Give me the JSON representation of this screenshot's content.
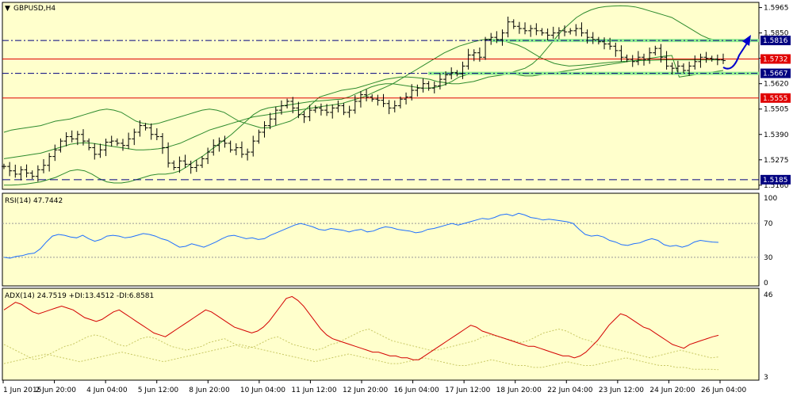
{
  "chart_data": {
    "type": "ohlc",
    "symbol_label": "GBPUSD,H4",
    "colors": {
      "background": "#ffffcc",
      "bars": "#000000",
      "bollinger": "#2e8b2e",
      "rsi": "#1e6fff",
      "adx": "#d40000",
      "plus_di": "#c8c864",
      "minus_di": "#c8c864",
      "red_level": "#e00000",
      "blue_level": "#000080",
      "zone": "#90ee90",
      "arrow": "#0000cc"
    },
    "price_axis": {
      "ylim": [
        1.5145,
        1.5985
      ],
      "ticks": [
        "1.5965",
        "1.5850",
        "1.5735",
        "1.5620",
        "1.5505",
        "1.5390",
        "1.5275",
        "1.5160"
      ],
      "tick_values": [
        1.5965,
        1.585,
        1.5735,
        1.562,
        1.5505,
        1.539,
        1.5275,
        1.516
      ]
    },
    "levels": [
      {
        "label": "1.5816",
        "value": 1.5816,
        "style": "dashdot",
        "color": "#000080"
      },
      {
        "label": "1.5732",
        "value": 1.5732,
        "style": "solid",
        "color": "#e00000"
      },
      {
        "label": "1.5667",
        "value": 1.5667,
        "style": "dashdot",
        "color": "#000080"
      },
      {
        "label": "1.5555",
        "value": 1.5555,
        "style": "solid",
        "color": "#e00000"
      },
      {
        "label": "1.5185",
        "value": 1.5185,
        "style": "dashed",
        "color": "#000080"
      }
    ],
    "closes": [
      1.5245,
      1.5225,
      1.521,
      1.523,
      1.5215,
      1.52,
      1.523,
      1.525,
      1.529,
      1.532,
      1.536,
      1.538,
      1.537,
      1.539,
      1.536,
      1.533,
      1.53,
      1.532,
      1.5355,
      1.536,
      1.535,
      1.534,
      1.537,
      1.54,
      1.543,
      1.542,
      1.539,
      1.538,
      1.533,
      1.526,
      1.524,
      1.527,
      1.5255,
      1.524,
      1.525,
      1.528,
      1.531,
      1.534,
      1.536,
      1.535,
      1.532,
      1.533,
      1.53,
      1.531,
      1.536,
      1.54,
      1.543,
      1.546,
      1.55,
      1.552,
      1.554,
      1.551,
      1.548,
      1.547,
      1.55,
      1.551,
      1.55,
      1.549,
      1.551,
      1.552,
      1.549,
      1.55,
      1.554,
      1.557,
      1.556,
      1.555,
      1.5545,
      1.553,
      1.551,
      1.552,
      1.555,
      1.556,
      1.559,
      1.56,
      1.562,
      1.56,
      1.561,
      1.564,
      1.566,
      1.567,
      1.5665,
      1.57,
      1.575,
      1.576,
      1.574,
      1.582,
      1.583,
      1.582,
      1.585,
      1.59,
      1.588,
      1.587,
      1.586,
      1.587,
      1.586,
      1.585,
      1.584,
      1.585,
      1.586,
      1.5855,
      1.586,
      1.587,
      1.585,
      1.583,
      1.582,
      1.581,
      1.58,
      1.579,
      1.577,
      1.574,
      1.573,
      1.572,
      1.574,
      1.573,
      1.576,
      1.578,
      1.574,
      1.57,
      1.569,
      1.57,
      1.568,
      1.57,
      1.572,
      1.574,
      1.5735,
      1.5732,
      1.5728,
      1.5725
    ],
    "bb_upper": [
      1.54,
      1.541,
      1.5415,
      1.542,
      1.5425,
      1.543,
      1.544,
      1.545,
      1.5455,
      1.546,
      1.547,
      1.548,
      1.549,
      1.55,
      1.5505,
      1.55,
      1.549,
      1.547,
      1.545,
      1.544,
      1.5435,
      1.544,
      1.545,
      1.546,
      1.547,
      1.548,
      1.549,
      1.55,
      1.5505,
      1.55,
      1.549,
      1.547,
      1.545,
      1.544,
      1.543,
      1.542,
      1.542,
      1.543,
      1.544,
      1.545,
      1.547,
      1.55,
      1.553,
      1.556,
      1.557,
      1.558,
      1.559,
      1.5595,
      1.56,
      1.561,
      1.562,
      1.563,
      1.564,
      1.5645,
      1.565,
      1.565,
      1.5648,
      1.5645,
      1.564,
      1.563,
      1.5625,
      1.562,
      1.562,
      1.5625,
      1.563,
      1.564,
      1.565,
      1.5655,
      1.566,
      1.567,
      1.568,
      1.569,
      1.571,
      1.574,
      1.578,
      1.582,
      1.586,
      1.589,
      1.592,
      1.594,
      1.5955,
      1.5965,
      1.597,
      1.5972,
      1.5973,
      1.5972,
      1.5968,
      1.596,
      1.595,
      1.594,
      1.593,
      1.592,
      1.59,
      1.588,
      1.586,
      1.584,
      1.5825,
      1.5818,
      1.5815
    ],
    "bb_mid": [
      1.528,
      1.5285,
      1.529,
      1.5295,
      1.53,
      1.5305,
      1.5315,
      1.5325,
      1.5335,
      1.5345,
      1.535,
      1.5352,
      1.535,
      1.5345,
      1.534,
      1.5335,
      1.533,
      1.5325,
      1.532,
      1.532,
      1.5322,
      1.5325,
      1.533,
      1.534,
      1.535,
      1.5365,
      1.538,
      1.5395,
      1.541,
      1.542,
      1.543,
      1.544,
      1.545,
      1.546,
      1.547,
      1.5475,
      1.548,
      1.5485,
      1.549,
      1.5495,
      1.55,
      1.5505,
      1.551,
      1.5515,
      1.552,
      1.5525,
      1.553,
      1.554,
      1.555,
      1.556,
      1.5575,
      1.559,
      1.5605,
      1.562,
      1.564,
      1.566,
      1.568,
      1.57,
      1.572,
      1.574,
      1.576,
      1.5775,
      1.579,
      1.58,
      1.581,
      1.5818,
      1.5822,
      1.582,
      1.5815,
      1.5805,
      1.5795,
      1.578,
      1.576,
      1.574,
      1.5725,
      1.5712,
      1.5705,
      1.57,
      1.5702,
      1.5705,
      1.5708,
      1.5712,
      1.5715,
      1.5718,
      1.572,
      1.5722,
      1.5724,
      1.5725,
      1.5726,
      1.5727,
      1.5728,
      1.5728,
      1.5728,
      1.5728,
      1.5728,
      1.5728,
      1.5728,
      1.5728,
      1.5728
    ],
    "bb_lower": [
      1.516,
      1.516,
      1.5162,
      1.5165,
      1.517,
      1.5175,
      1.5185,
      1.5195,
      1.521,
      1.5225,
      1.523,
      1.5225,
      1.521,
      1.519,
      1.5175,
      1.517,
      1.517,
      1.5175,
      1.5185,
      1.5195,
      1.5205,
      1.521,
      1.521,
      1.5215,
      1.5225,
      1.5245,
      1.527,
      1.529,
      1.5315,
      1.534,
      1.5365,
      1.539,
      1.542,
      1.545,
      1.548,
      1.55,
      1.551,
      1.5515,
      1.552,
      1.5525,
      1.553,
      1.5535,
      1.554,
      1.5542,
      1.5545,
      1.5548,
      1.555,
      1.556,
      1.5575,
      1.559,
      1.5605,
      1.5615,
      1.562,
      1.562,
      1.5615,
      1.561,
      1.5605,
      1.56,
      1.56,
      1.5605,
      1.5615,
      1.563,
      1.565,
      1.566,
      1.5665,
      1.5668,
      1.567,
      1.567,
      1.5668,
      1.5665,
      1.566,
      1.5655,
      1.5655,
      1.566,
      1.5665,
      1.567,
      1.5675,
      1.568,
      1.5685,
      1.569,
      1.5695,
      1.57,
      1.5705,
      1.571,
      1.5715,
      1.572,
      1.5725,
      1.573,
      1.5735,
      1.574,
      1.5745,
      1.5748,
      1.565,
      1.5655,
      1.566,
      1.5665,
      1.567,
      1.5675,
      1.568
    ],
    "rsi": {
      "label": "RSI(14) 47.7442",
      "ylim": [
        0,
        100
      ],
      "ticks": [
        "100",
        "70",
        "30",
        "0"
      ],
      "tick_values": [
        100,
        70,
        30,
        0
      ],
      "levels": [
        70,
        30
      ],
      "values": [
        30,
        29,
        31,
        32,
        34,
        35,
        40,
        48,
        55,
        57,
        56,
        54,
        53,
        56,
        52,
        49,
        51,
        55,
        56,
        55,
        53,
        54,
        56,
        58,
        57,
        55,
        52,
        50,
        46,
        42,
        43,
        46,
        44,
        42,
        45,
        48,
        52,
        55,
        56,
        54,
        52,
        53,
        51,
        52,
        56,
        59,
        62,
        65,
        68,
        70,
        68,
        66,
        63,
        62,
        64,
        63,
        62,
        60,
        62,
        63,
        60,
        61,
        64,
        66,
        65,
        63,
        62,
        61,
        59,
        60,
        63,
        64,
        66,
        68,
        70,
        68,
        70,
        72,
        74,
        76,
        75,
        77,
        80,
        81,
        79,
        82,
        80,
        77,
        76,
        74,
        75,
        74,
        73,
        72,
        70,
        63,
        57,
        55,
        56,
        54,
        50,
        48,
        45,
        44,
        46,
        47,
        50,
        52,
        50,
        45,
        43,
        44,
        42,
        44,
        48,
        50,
        49,
        48,
        47.7
      ]
    },
    "adx": {
      "label": "ADX(14) 24.7519 +DI:13.4512 -DI:6.8581",
      "ylim": [
        3,
        46
      ],
      "ticks": [
        "46",
        "3"
      ],
      "tick_values": [
        46,
        3
      ],
      "adx_values": [
        38,
        40,
        42,
        41,
        39,
        37,
        36,
        37,
        38,
        39,
        40,
        39,
        38,
        36,
        34,
        33,
        32,
        33,
        35,
        37,
        38,
        36,
        34,
        32,
        30,
        28,
        26,
        25,
        24,
        26,
        28,
        30,
        32,
        34,
        36,
        38,
        37,
        35,
        33,
        31,
        29,
        28,
        27,
        26,
        27,
        29,
        32,
        36,
        40,
        44,
        45,
        43,
        40,
        36,
        32,
        28,
        25,
        23,
        22,
        21,
        20,
        19,
        18,
        17,
        16,
        16,
        15,
        14,
        14,
        13,
        13,
        12,
        12,
        14,
        16,
        18,
        20,
        22,
        24,
        26,
        28,
        30,
        29,
        27,
        26,
        25,
        24,
        23,
        22,
        21,
        20,
        19,
        19,
        18,
        17,
        16,
        15,
        14,
        14,
        13,
        14,
        16,
        19,
        22,
        26,
        30,
        33,
        36,
        35,
        33,
        31,
        29,
        28,
        26,
        24,
        22,
        20,
        19,
        18,
        20,
        21,
        22,
        23,
        24,
        24.75
      ],
      "plus_di_values": [
        20,
        18,
        16,
        14,
        12,
        13,
        15,
        17,
        19,
        20,
        22,
        24,
        25,
        24,
        22,
        20,
        19,
        21,
        23,
        24,
        23,
        21,
        19,
        18,
        17,
        18,
        19,
        21,
        22,
        23,
        21,
        19,
        18,
        19,
        21,
        23,
        24,
        22,
        20,
        19,
        18,
        17,
        18,
        20,
        21,
        23,
        25,
        27,
        28,
        26,
        24,
        22,
        21,
        20,
        19,
        18,
        17,
        17,
        18,
        19,
        20,
        21,
        22,
        24,
        25,
        24,
        23,
        22,
        21,
        22,
        24,
        26,
        27,
        28,
        27,
        25,
        23,
        22,
        20,
        19,
        18,
        17,
        16,
        15,
        14,
        13,
        14,
        15,
        16,
        17,
        16,
        15,
        14,
        13,
        13.45
      ],
      "minus_di_values": [
        10,
        11,
        12,
        13,
        14,
        15,
        14,
        13,
        12,
        11,
        12,
        13,
        14,
        15,
        16,
        15,
        14,
        13,
        12,
        11,
        12,
        13,
        14,
        15,
        16,
        17,
        18,
        19,
        20,
        19,
        18,
        17,
        16,
        15,
        14,
        13,
        12,
        11,
        12,
        13,
        14,
        15,
        14,
        13,
        12,
        11,
        10,
        10,
        11,
        12,
        13,
        12,
        11,
        10,
        9,
        9,
        10,
        11,
        12,
        11,
        10,
        9,
        9,
        8,
        8,
        9,
        10,
        11,
        10,
        9,
        9,
        10,
        11,
        12,
        13,
        12,
        11,
        10,
        9,
        9,
        8,
        8,
        7,
        7,
        7,
        6.86
      ]
    },
    "x_labels": [
      "1 Jun 2015",
      "2 Jun 20:00",
      "4 Jun 04:00",
      "5 Jun 12:00",
      "8 Jun 20:00",
      "10 Jun 04:00",
      "11 Jun 12:00",
      "12 Jun 20:00",
      "16 Jun 04:00",
      "17 Jun 12:00",
      "18 Jun 20:00",
      "22 Jun 04:00",
      "23 Jun 12:00",
      "24 Jun 20:00",
      "26 Jun 04:00"
    ]
  }
}
